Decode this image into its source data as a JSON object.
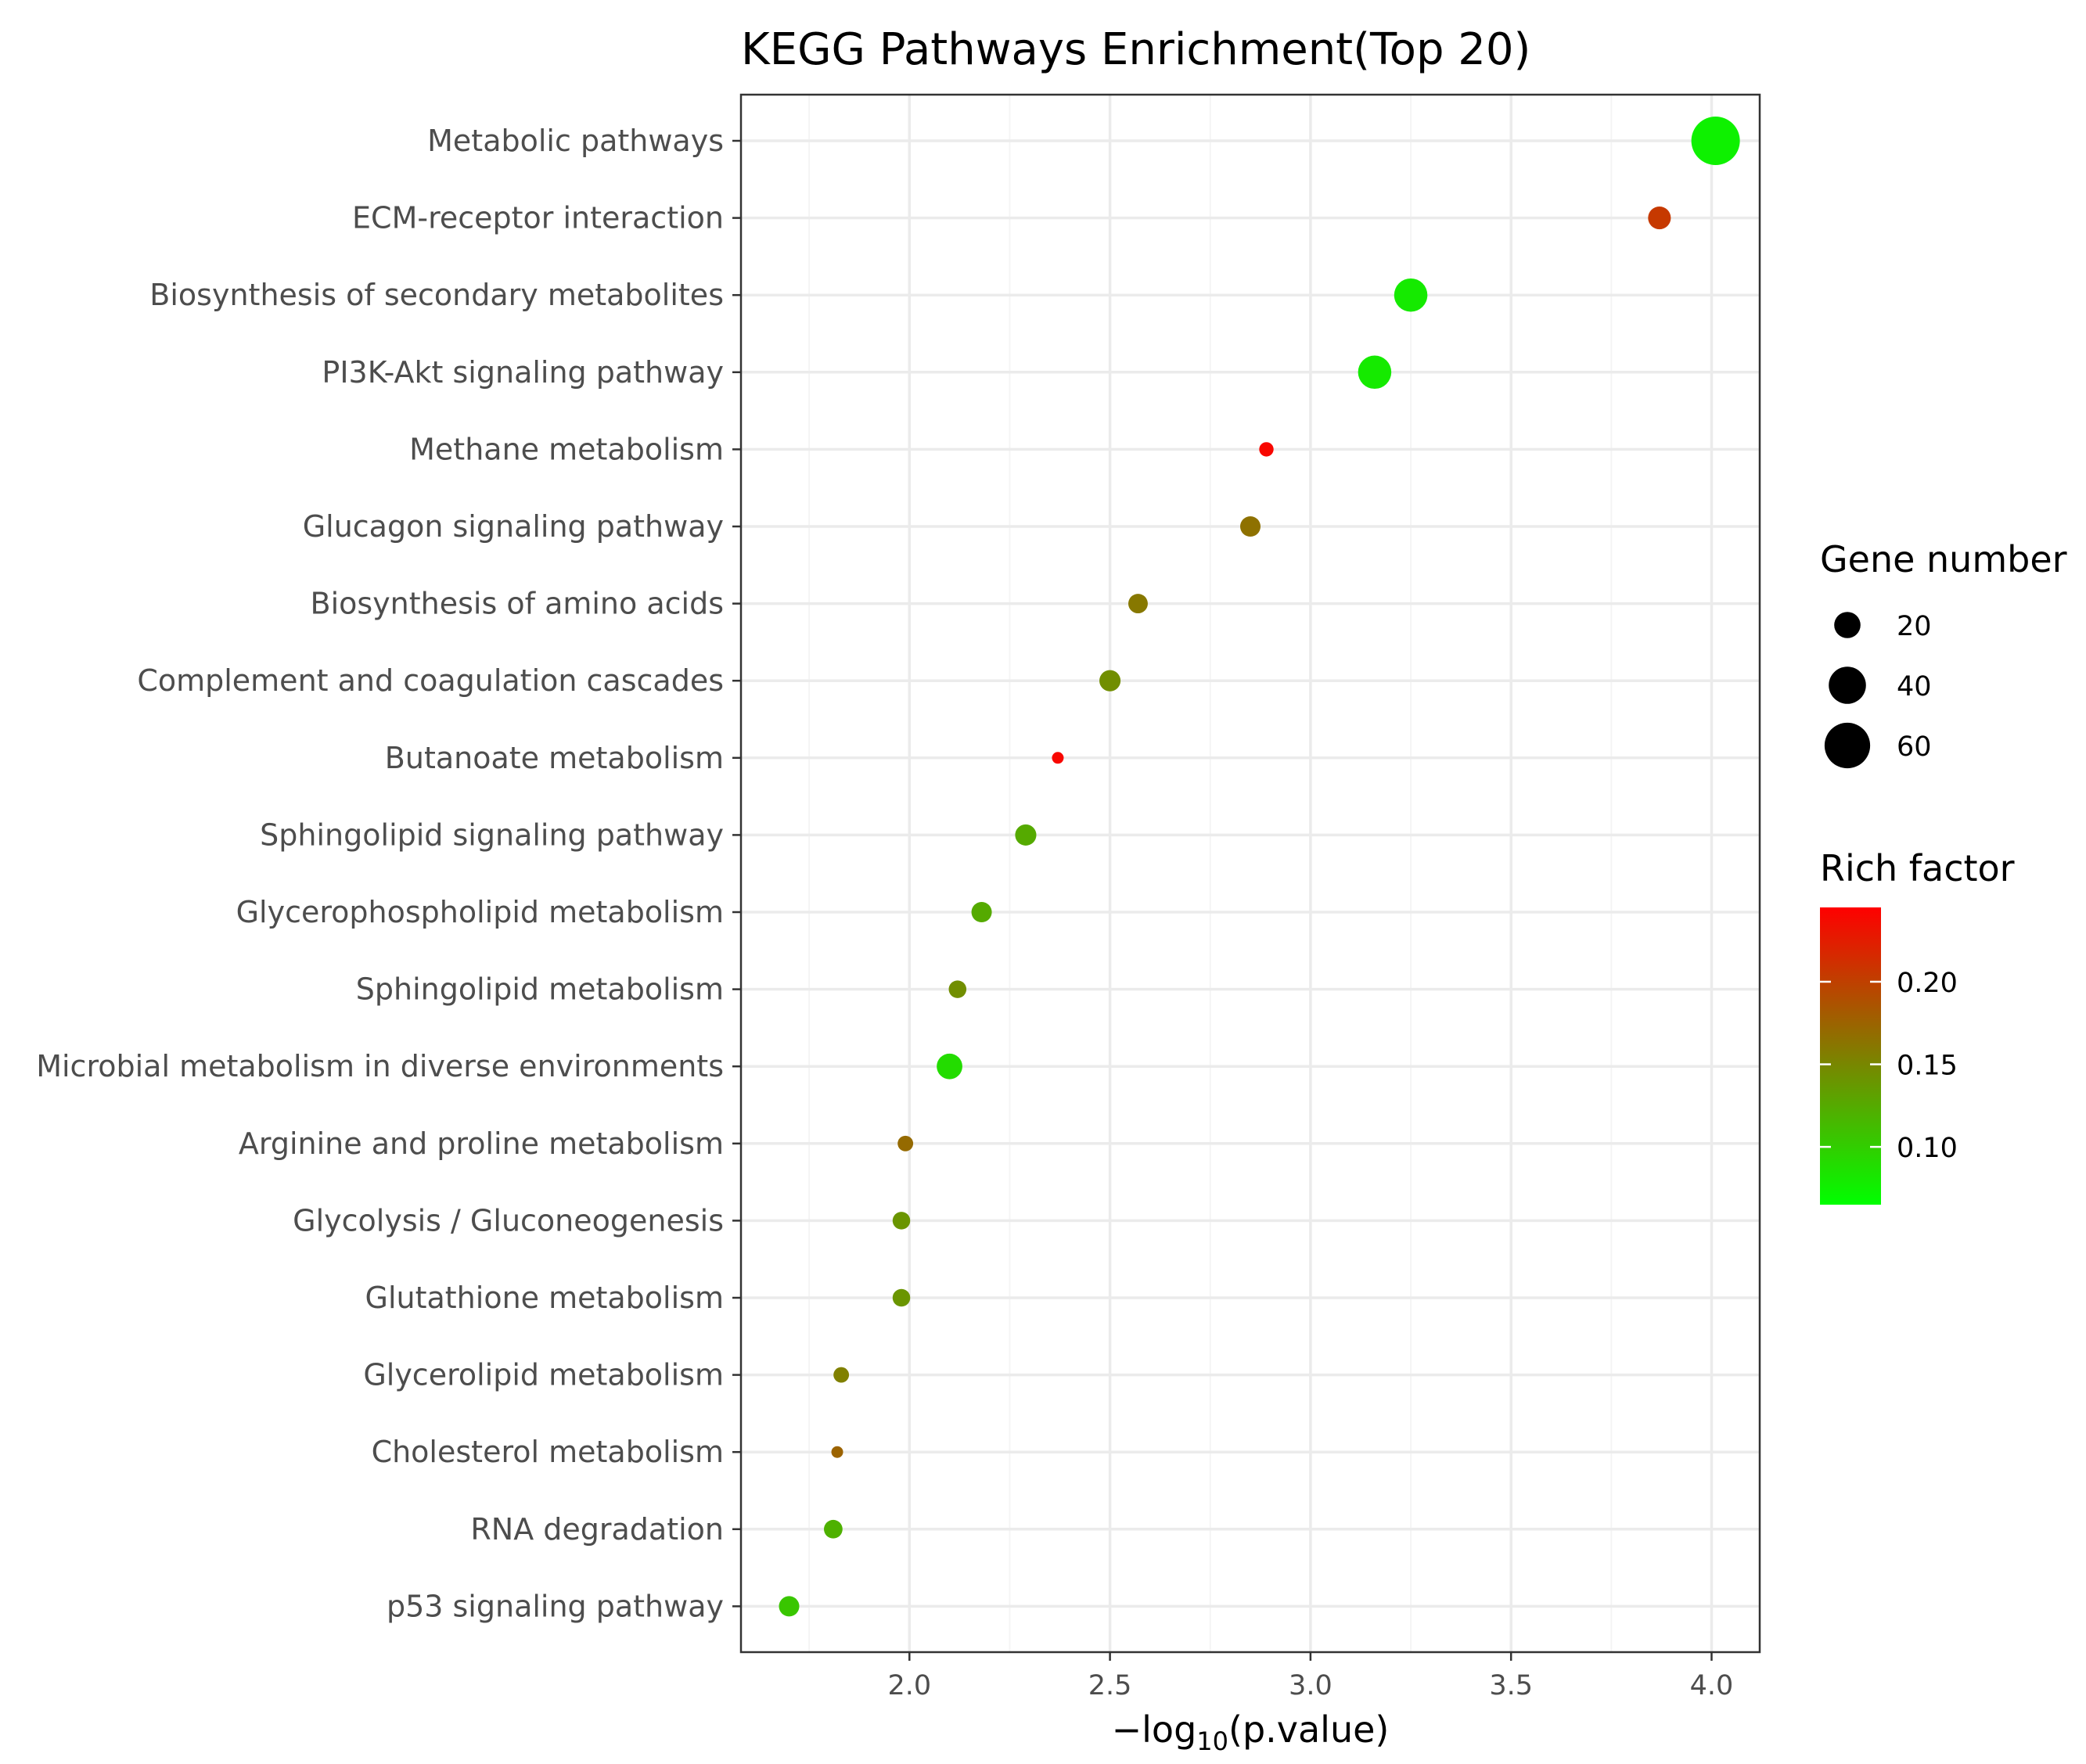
{
  "chart_data": {
    "type": "scatter",
    "title": "KEGG Pathways Enrichment(Top 20)",
    "xlabel_prefix": "−log",
    "xlabel_sub": "10",
    "xlabel_suffix": "(p.value)",
    "ylabel": "",
    "xlim": [
      1.58,
      4.12
    ],
    "x_ticks": [
      "2.0",
      "2.5",
      "3.0",
      "3.5",
      "4.0"
    ],
    "x_tick_values": [
      2.0,
      2.5,
      3.0,
      3.5,
      4.0
    ],
    "x_minor_values": [
      1.75,
      2.25,
      2.75,
      3.25,
      3.75
    ],
    "grid": true,
    "points": [
      {
        "category": "Metabolic pathways",
        "x": 4.01,
        "gene_number": 68,
        "rich_factor": 0.075
      },
      {
        "category": "ECM-receptor interaction",
        "x": 3.87,
        "gene_number": 15,
        "rich_factor": 0.205
      },
      {
        "category": "Biosynthesis of secondary metabolites",
        "x": 3.25,
        "gene_number": 32,
        "rich_factor": 0.08
      },
      {
        "category": "PI3K-Akt signaling pathway",
        "x": 3.16,
        "gene_number": 32,
        "rich_factor": 0.08
      },
      {
        "category": "Methane metabolism",
        "x": 2.89,
        "gene_number": 6,
        "rich_factor": 0.24
      },
      {
        "category": "Glucagon signaling pathway",
        "x": 2.85,
        "gene_number": 12,
        "rich_factor": 0.165
      },
      {
        "category": "Biosynthesis of amino acids",
        "x": 2.57,
        "gene_number": 11,
        "rich_factor": 0.16
      },
      {
        "category": "Complement and coagulation cascades",
        "x": 2.5,
        "gene_number": 13,
        "rich_factor": 0.145
      },
      {
        "category": "Butanoate metabolism",
        "x": 2.37,
        "gene_number": 4,
        "rich_factor": 0.24
      },
      {
        "category": "Sphingolipid signaling pathway",
        "x": 2.29,
        "gene_number": 13,
        "rich_factor": 0.125
      },
      {
        "category": "Glycerophospholipid metabolism",
        "x": 2.18,
        "gene_number": 12,
        "rich_factor": 0.125
      },
      {
        "category": "Sphingolipid metabolism",
        "x": 2.12,
        "gene_number": 9,
        "rich_factor": 0.145
      },
      {
        "category": "Microbial metabolism in diverse environments",
        "x": 2.1,
        "gene_number": 19,
        "rich_factor": 0.09
      },
      {
        "category": "Arginine and proline metabolism",
        "x": 1.99,
        "gene_number": 7,
        "rich_factor": 0.17
      },
      {
        "category": "Glycolysis / Gluconeogenesis",
        "x": 1.98,
        "gene_number": 9,
        "rich_factor": 0.14
      },
      {
        "category": "Glutathione metabolism",
        "x": 1.98,
        "gene_number": 9,
        "rich_factor": 0.14
      },
      {
        "category": "Glycerolipid metabolism",
        "x": 1.83,
        "gene_number": 7,
        "rich_factor": 0.155
      },
      {
        "category": "Cholesterol metabolism",
        "x": 1.82,
        "gene_number": 4,
        "rich_factor": 0.175
      },
      {
        "category": "RNA degradation",
        "x": 1.81,
        "gene_number": 10,
        "rich_factor": 0.12
      },
      {
        "category": "p53 signaling pathway",
        "x": 1.7,
        "gene_number": 12,
        "rich_factor": 0.105
      }
    ],
    "size_legend": {
      "title": "Gene number",
      "entries": [
        {
          "label": "20",
          "value": 20
        },
        {
          "label": "40",
          "value": 40
        },
        {
          "label": "60",
          "value": 60
        }
      ]
    },
    "color_legend": {
      "title": "Rich factor",
      "min": 0.065,
      "max": 0.245,
      "low_color": "#00ff00",
      "high_color": "#ff0000",
      "ticks": [
        {
          "label": "0.20",
          "value": 0.2
        },
        {
          "label": "0.15",
          "value": 0.15
        },
        {
          "label": "0.10",
          "value": 0.1
        }
      ]
    },
    "size_range_genes": [
      4,
      68
    ],
    "colors": {
      "panel_border": "#333333",
      "grid": "#ebebeb",
      "text_axis": "#4d4d4d"
    }
  }
}
